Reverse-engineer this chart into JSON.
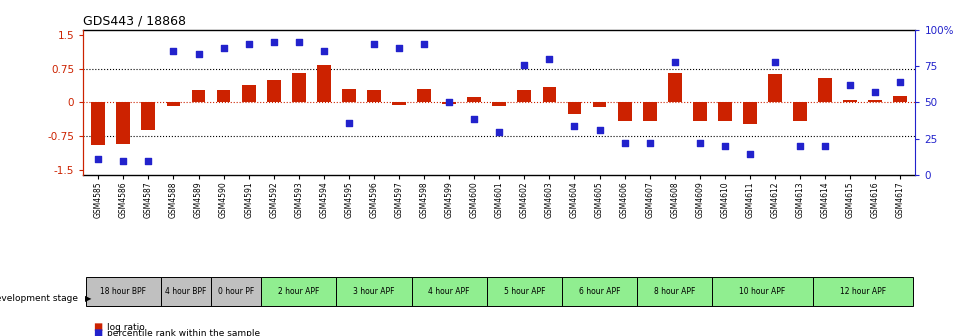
{
  "title": "GDS443 / 18868",
  "samples": [
    "GSM4585",
    "GSM4586",
    "GSM4587",
    "GSM4588",
    "GSM4589",
    "GSM4590",
    "GSM4591",
    "GSM4592",
    "GSM4593",
    "GSM4594",
    "GSM4595",
    "GSM4596",
    "GSM4597",
    "GSM4598",
    "GSM4599",
    "GSM4600",
    "GSM4601",
    "GSM4602",
    "GSM4603",
    "GSM4604",
    "GSM4605",
    "GSM4606",
    "GSM4607",
    "GSM4608",
    "GSM4609",
    "GSM4610",
    "GSM4611",
    "GSM4612",
    "GSM4613",
    "GSM4614",
    "GSM4615",
    "GSM4616",
    "GSM4617"
  ],
  "log_ratio": [
    -0.95,
    -0.92,
    -0.62,
    -0.08,
    0.28,
    0.28,
    0.38,
    0.5,
    0.65,
    0.82,
    0.3,
    0.28,
    -0.06,
    0.3,
    -0.03,
    0.12,
    -0.07,
    0.28,
    0.35,
    -0.25,
    -0.1,
    -0.42,
    -0.42,
    0.65,
    -0.42,
    -0.42,
    -0.47,
    0.62,
    -0.42,
    0.55,
    0.05,
    0.05,
    0.15
  ],
  "percentile": [
    8,
    7,
    7,
    88,
    86,
    90,
    93,
    95,
    95,
    88,
    35,
    93,
    90,
    93,
    50,
    38,
    28,
    78,
    82,
    33,
    30,
    20,
    20,
    80,
    20,
    18,
    12,
    80,
    18,
    18,
    63,
    58,
    65
  ],
  "stages": [
    {
      "label": "18 hour BPF",
      "start": 0,
      "end": 2,
      "color": "#c0c0c0"
    },
    {
      "label": "4 hour BPF",
      "start": 3,
      "end": 4,
      "color": "#c0c0c0"
    },
    {
      "label": "0 hour PF",
      "start": 5,
      "end": 6,
      "color": "#c0c0c0"
    },
    {
      "label": "2 hour APF",
      "start": 7,
      "end": 9,
      "color": "#90ee90"
    },
    {
      "label": "3 hour APF",
      "start": 10,
      "end": 12,
      "color": "#90ee90"
    },
    {
      "label": "4 hour APF",
      "start": 13,
      "end": 15,
      "color": "#90ee90"
    },
    {
      "label": "5 hour APF",
      "start": 16,
      "end": 18,
      "color": "#90ee90"
    },
    {
      "label": "6 hour APF",
      "start": 19,
      "end": 21,
      "color": "#90ee90"
    },
    {
      "label": "8 hour APF",
      "start": 22,
      "end": 24,
      "color": "#90ee90"
    },
    {
      "label": "10 hour APF",
      "start": 25,
      "end": 28,
      "color": "#90ee90"
    },
    {
      "label": "12 hour APF",
      "start": 29,
      "end": 32,
      "color": "#90ee90"
    }
  ],
  "bar_color": "#cc2200",
  "dot_color": "#2222cc",
  "ylim": [
    -1.6,
    1.6
  ],
  "yticks": [
    -1.5,
    -0.75,
    0.0,
    0.75,
    1.5
  ],
  "ytick_labels": [
    "-1.5",
    "-0.75",
    "0",
    "0.75",
    "1.5"
  ],
  "y2ticks": [
    0,
    25,
    50,
    75,
    100
  ],
  "y2tick_labels": [
    "0",
    "25",
    "50",
    "75",
    "100%"
  ],
  "legend_log": "log ratio",
  "legend_pct": "percentile rank within the sample",
  "dev_stage_label": "development stage"
}
